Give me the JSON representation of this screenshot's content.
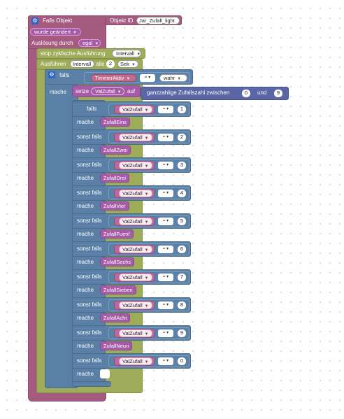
{
  "trigger": {
    "title": "Falls Objekt",
    "object_id_label": "Objekt ID",
    "object_id_value": "Jar_Zufall_light",
    "changed_option": "wurde geändert",
    "trigger_by_label": "Auslösung durch",
    "trigger_by_value": "egal"
  },
  "cycle": {
    "stop_label": "stop zyklische Ausführung",
    "stop_value": "Intervall",
    "run_label": "Ausführen",
    "run_value": "Intervall",
    "every_label": "alle",
    "every_value": "2",
    "unit_value": "Sek"
  },
  "outer_if": {
    "if_label": "falls",
    "then_label": "mache",
    "var_name": "TimmerAktiv",
    "operator": "=",
    "value": "wahr"
  },
  "set_block": {
    "set_label": "setze",
    "var_name": "ValZufall",
    "to_label": "auf",
    "random_label": "ganzzahlige Zufallszahl zwischen",
    "from_value": "0",
    "and_label": "und",
    "to_value": "9"
  },
  "if_chain": {
    "first_if_label": "falls",
    "else_if_label": "sonst falls",
    "then_label": "mache",
    "variable": "ValZufall",
    "operator": "=",
    "branches": [
      {
        "value": "1",
        "action": "ZufallEins"
      },
      {
        "value": "2",
        "action": "ZufallZwei"
      },
      {
        "value": "3",
        "action": "ZufallDrei"
      },
      {
        "value": "4",
        "action": "ZufallVier"
      },
      {
        "value": "5",
        "action": "ZufallFuenf"
      },
      {
        "value": "6",
        "action": "ZufallSechs"
      },
      {
        "value": "7",
        "action": "ZufallSieben"
      },
      {
        "value": "8",
        "action": "ZufallAcht"
      },
      {
        "value": "9",
        "action": "ZufallNeun"
      },
      {
        "value": "0",
        "action": ""
      }
    ]
  },
  "icons": {
    "gear": "gear-icon",
    "dropdown": "caret-down-icon"
  }
}
